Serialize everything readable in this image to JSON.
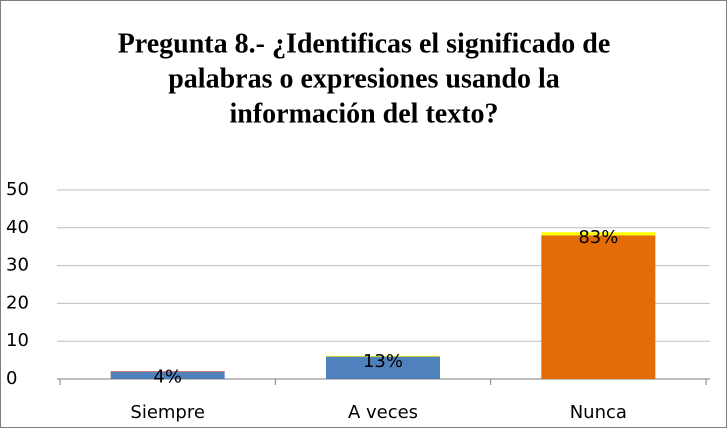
{
  "chart_data": {
    "type": "bar",
    "stacked": true,
    "title": [
      "Pregunta 8.- ¿Identificas el significado de",
      "palabras o expresiones usando la",
      "información del texto?"
    ],
    "categories": [
      "Siempre",
      "A veces",
      "Nunca"
    ],
    "series": [
      {
        "colors": [
          "#4f81bd",
          "#4f81bd",
          "#e36c09"
        ],
        "values": [
          2,
          6,
          38
        ]
      },
      {
        "colors": [
          "#c0504d",
          "#ffff00",
          "#ffff00"
        ],
        "values": [
          0.04,
          0.13,
          0.83
        ],
        "value_labels": [
          "4%",
          "13%",
          "83%"
        ]
      }
    ],
    "ylim": [
      0,
      50
    ],
    "yticks": [
      0,
      10,
      20,
      30,
      40,
      50
    ],
    "grid": true
  }
}
